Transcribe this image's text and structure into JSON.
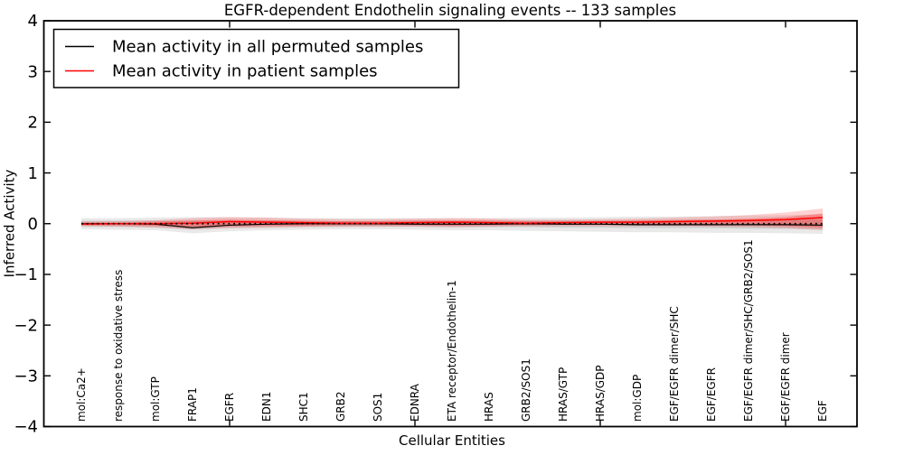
{
  "chart_data": {
    "type": "line",
    "title": "EGFR-dependent Endothelin signaling events -- 133 samples",
    "xlabel": "Cellular Entities",
    "ylabel": "Inferred Activity",
    "ylim": [
      -4,
      4
    ],
    "yticks": [
      4,
      3,
      2,
      1,
      0,
      -1,
      -2,
      -3,
      -4
    ],
    "ytick_labels": [
      "4",
      "3",
      "2",
      "1",
      "0",
      "−1",
      "−2",
      "−3",
      "−4"
    ],
    "grid": false,
    "legend_position": "upper left",
    "x_major_tick_indices": [
      4,
      9,
      14,
      19
    ],
    "categories": [
      "mol:Ca2+",
      "response to oxidative stress",
      "mol:GTP",
      "FRAP1",
      "EGFR",
      "EDN1",
      "SHC1",
      "GRB2",
      "SOS1",
      "EDNRA",
      "ETA receptor/Endothelin-1",
      "HRAS",
      "GRB2/SOS1",
      "HRAS/GTP",
      "HRAS/GDP",
      "mol:GDP",
      "EGF/EGFR dimer/SHC",
      "EGF/EGFR",
      "EGF/EGFR dimer/SHC/GRB2/SOS1",
      "EGF/EGFR dimer",
      "EGF"
    ],
    "series": [
      {
        "name": "Mean activity in all permuted samples",
        "color": "#000000",
        "style": "solid",
        "width": 1.2,
        "values": [
          0.0,
          0.0,
          -0.01,
          -0.08,
          -0.03,
          -0.01,
          0.0,
          0.0,
          0.0,
          -0.01,
          -0.01,
          -0.01,
          0.0,
          -0.01,
          -0.01,
          -0.02,
          -0.02,
          -0.02,
          -0.02,
          -0.02,
          -0.03
        ]
      },
      {
        "name": "Mean activity in patient samples",
        "color": "#ff0000",
        "style": "solid",
        "width": 1.5,
        "values": [
          -0.01,
          0.0,
          0.0,
          0.01,
          0.04,
          0.03,
          0.02,
          0.01,
          0.01,
          0.02,
          0.03,
          0.02,
          0.01,
          0.02,
          0.03,
          0.03,
          0.04,
          0.05,
          0.06,
          0.08,
          0.12
        ]
      }
    ],
    "bands": [
      {
        "name": "permuted-range-outer",
        "color": "rgba(120,120,120,0.16)",
        "upper": [
          0.11,
          0.11,
          0.12,
          0.13,
          0.13,
          0.12,
          0.11,
          0.11,
          0.11,
          0.11,
          0.11,
          0.11,
          0.12,
          0.12,
          0.13,
          0.14,
          0.14,
          0.15,
          0.16,
          0.17,
          0.18
        ],
        "lower": [
          -0.11,
          -0.12,
          -0.13,
          -0.19,
          -0.15,
          -0.13,
          -0.12,
          -0.11,
          -0.11,
          -0.12,
          -0.13,
          -0.13,
          -0.14,
          -0.15,
          -0.16,
          -0.17,
          -0.17,
          -0.18,
          -0.18,
          -0.19,
          -0.2
        ]
      },
      {
        "name": "permuted-range-inner",
        "color": "rgba(120,120,120,0.20)",
        "upper": [
          0.06,
          0.06,
          0.06,
          0.06,
          0.06,
          0.06,
          0.05,
          0.05,
          0.05,
          0.06,
          0.06,
          0.06,
          0.06,
          0.07,
          0.07,
          0.07,
          0.08,
          0.08,
          0.08,
          0.09,
          0.09
        ],
        "lower": [
          -0.06,
          -0.06,
          -0.07,
          -0.12,
          -0.08,
          -0.07,
          -0.06,
          -0.06,
          -0.06,
          -0.06,
          -0.07,
          -0.07,
          -0.07,
          -0.08,
          -0.08,
          -0.09,
          -0.09,
          -0.09,
          -0.1,
          -0.1,
          -0.11
        ]
      },
      {
        "name": "patient-range-outer",
        "color": "rgba(255,0,0,0.18)",
        "upper": [
          0.04,
          0.05,
          0.07,
          0.11,
          0.13,
          0.12,
          0.1,
          0.09,
          0.09,
          0.1,
          0.11,
          0.1,
          0.08,
          0.08,
          0.09,
          0.1,
          0.12,
          0.14,
          0.17,
          0.22,
          0.3
        ],
        "lower": [
          -0.05,
          -0.06,
          -0.08,
          -0.11,
          -0.09,
          -0.08,
          -0.07,
          -0.06,
          -0.06,
          -0.06,
          -0.07,
          -0.06,
          -0.05,
          -0.05,
          -0.05,
          -0.05,
          -0.05,
          -0.06,
          -0.07,
          -0.09,
          -0.13
        ]
      },
      {
        "name": "patient-range-inner",
        "color": "rgba(255,0,0,0.28)",
        "upper": [
          0.02,
          0.02,
          0.04,
          0.06,
          0.08,
          0.07,
          0.06,
          0.05,
          0.05,
          0.06,
          0.06,
          0.06,
          0.05,
          0.05,
          0.05,
          0.06,
          0.07,
          0.08,
          0.1,
          0.13,
          0.2
        ],
        "lower": [
          -0.03,
          -0.03,
          -0.04,
          -0.06,
          -0.05,
          -0.04,
          -0.04,
          -0.03,
          -0.03,
          -0.03,
          -0.04,
          -0.03,
          -0.03,
          -0.02,
          -0.02,
          -0.02,
          -0.02,
          -0.03,
          -0.03,
          -0.05,
          -0.08
        ]
      }
    ],
    "zero_line": {
      "style": "dotted",
      "color": "#000000",
      "y": 0
    }
  },
  "legend": {
    "entries": [
      {
        "label": "Mean activity in all permuted samples",
        "color": "#000000"
      },
      {
        "label": "Mean activity in patient samples",
        "color": "#ff0000"
      }
    ]
  }
}
